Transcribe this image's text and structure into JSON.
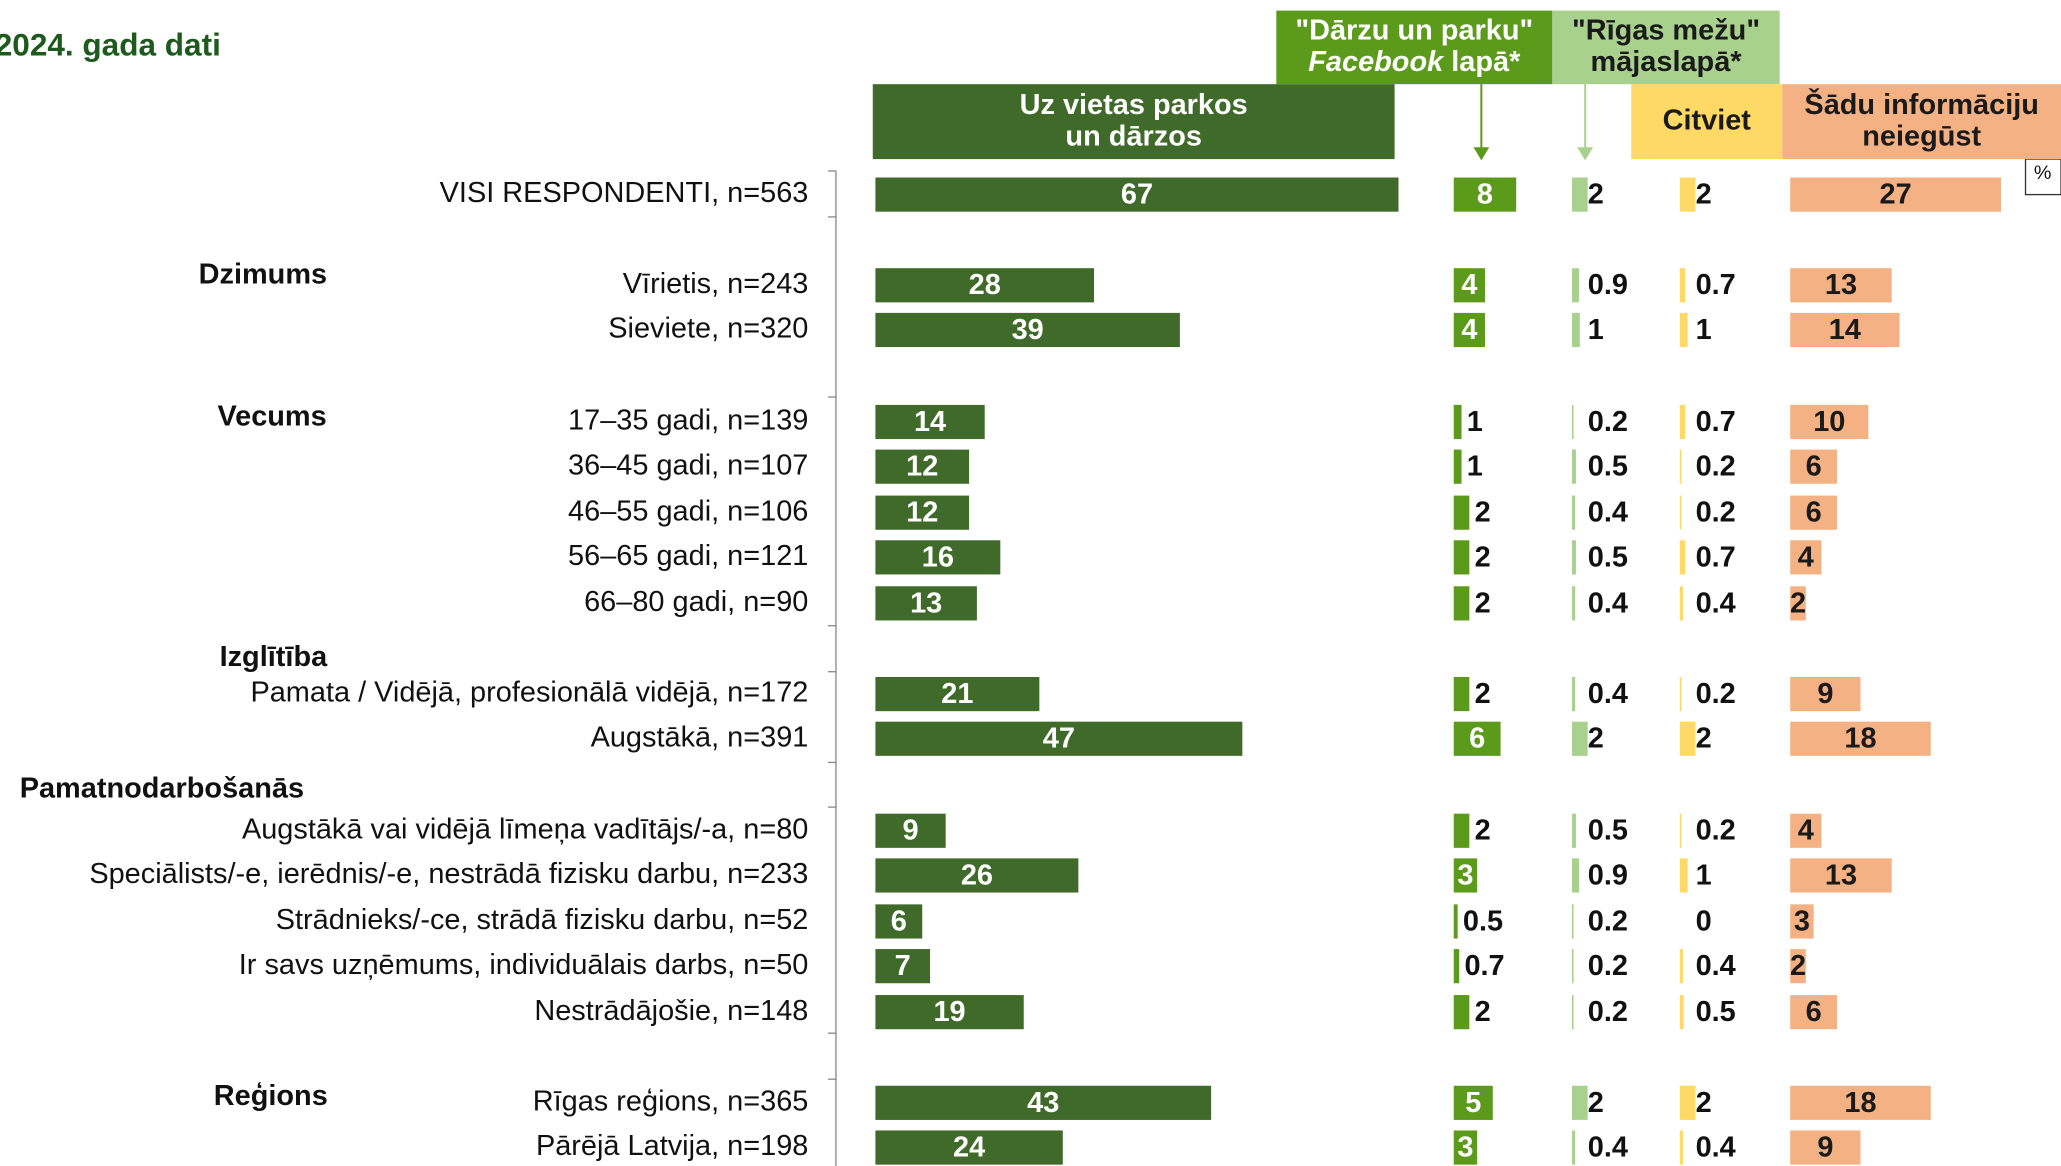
{
  "chart_data": {
    "type": "bar",
    "title": "2024. gada dati",
    "unit": "%",
    "groups": [
      "Dzimums",
      "Vecums",
      "Izglītība",
      "Pamatnodarbošanās",
      "Reģions"
    ],
    "categories": [
      "VISI RESPONDENTI, n=563",
      "Vīrietis, n=243",
      "Sieviete, n=320",
      "17–35 gadi, n=139",
      "36–45 gadi, n=107",
      "46–55 gadi, n=106",
      "56–65 gadi, n=121",
      "66–80 gadi, n=90",
      "Pamata / Vidējā, profesionālā vidējā, n=172",
      "Augstākā, n=391",
      "Augstākā vai vidējā līmeņa vadītājs/-a, n=80",
      "Speciālists/-e, ierēdnis/-e, nestrādā fizisku darbu, n=233",
      "Strādnieks/-ce, strādā fizisku darbu, n=52",
      "Ir savs uzņēmums, individuālais darbs, n=50",
      "Nestrādājošie, n=148",
      "Rīgas reģions, n=365",
      "Pārējā Latvija, n=198"
    ],
    "series": [
      {
        "name": [
          [
            {
              "text": "Uz vietas parkos"
            }
          ],
          [
            {
              "text": "un dārzos"
            }
          ]
        ],
        "color": "#3f6a2a",
        "header_color": "#3f6a2a",
        "header_text_color": "#ffffff",
        "label_color": "#ffffff",
        "label_position": "inside",
        "values": [
          67,
          28,
          39,
          14,
          12,
          12,
          16,
          13,
          21,
          47,
          9,
          26,
          6,
          7,
          19,
          43,
          24
        ]
      },
      {
        "name": [
          [
            {
              "text": "\"Dārzu un parku\""
            }
          ],
          [
            {
              "text": "Facebook",
              "italic": true
            },
            {
              "text": " lapā*"
            }
          ]
        ],
        "color": "#5c9a1b",
        "header_color": "#5c9a1b",
        "header_text_color": "#ffffff",
        "label_color": "#ffffff",
        "label_position": "auto",
        "values": [
          8,
          4,
          4,
          1,
          1,
          2,
          2,
          2,
          2,
          6,
          2,
          3,
          0.5,
          0.7,
          2,
          5,
          3
        ]
      },
      {
        "name": [
          [
            {
              "text": "\"Rīgas mežu\""
            }
          ],
          [
            {
              "text": "mājaslapā*"
            }
          ]
        ],
        "color": "#a9d18e",
        "header_color": "#a9d18e",
        "header_text_color": "#1a1a1a",
        "label_color": "#1a1a1a",
        "label_position": "outside",
        "values": [
          2,
          0.9,
          1,
          0.2,
          0.5,
          0.4,
          0.5,
          0.4,
          0.4,
          2,
          0.5,
          0.9,
          0.2,
          0.2,
          0.2,
          2,
          0.4
        ]
      },
      {
        "name": [
          [
            {
              "text": "Citviet"
            }
          ]
        ],
        "color": "#ffd966",
        "header_color": "#ffd966",
        "header_text_color": "#1a1a1a",
        "label_color": "#1a1a1a",
        "label_position": "outside",
        "values": [
          2,
          0.7,
          1,
          0.7,
          0.2,
          0.2,
          0.7,
          0.4,
          0.2,
          2,
          0.2,
          1,
          0,
          0.4,
          0.5,
          2,
          0.4
        ]
      },
      {
        "name": [
          [
            {
              "text": "Šādu informāciju"
            }
          ],
          [
            {
              "text": "neiegūst"
            }
          ]
        ],
        "color": "#f4b183",
        "header_color": "#f4b183",
        "header_text_color": "#1a1a1a",
        "label_color": "#1a1a1a",
        "label_position": "inside",
        "values": [
          27,
          13,
          14,
          10,
          6,
          6,
          4,
          2,
          9,
          18,
          4,
          13,
          3,
          2,
          6,
          18,
          9
        ]
      }
    ]
  }
}
